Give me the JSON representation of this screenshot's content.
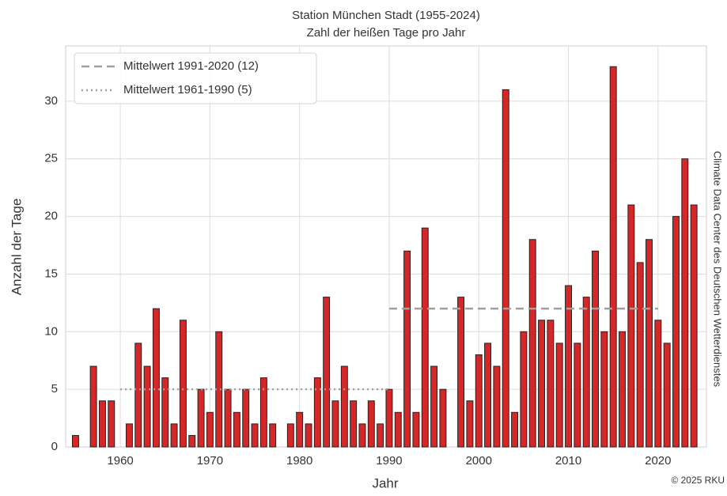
{
  "chart_data": {
    "type": "bar",
    "title": "Station München Stadt (1955-2024)",
    "subtitle": "Zahl der heißen Tage pro Jahr",
    "x_label": "Jahr",
    "y_label": "Anzahl der Tage",
    "source": "Climate Data Center des Deutschen Wetterdienstes",
    "credit": "© 2025 RKU",
    "x": [
      1955,
      1956,
      1957,
      1958,
      1959,
      1960,
      1961,
      1962,
      1963,
      1964,
      1965,
      1966,
      1967,
      1968,
      1969,
      1970,
      1971,
      1972,
      1973,
      1974,
      1975,
      1976,
      1977,
      1978,
      1979,
      1980,
      1981,
      1982,
      1983,
      1984,
      1985,
      1986,
      1987,
      1988,
      1989,
      1990,
      1991,
      1992,
      1993,
      1994,
      1995,
      1996,
      1997,
      1998,
      1999,
      2000,
      2001,
      2002,
      2003,
      2004,
      2005,
      2006,
      2007,
      2008,
      2009,
      2010,
      2011,
      2012,
      2013,
      2014,
      2015,
      2016,
      2017,
      2018,
      2019,
      2020,
      2021,
      2022,
      2023,
      2024
    ],
    "values": [
      1,
      0,
      7,
      4,
      4,
      0,
      2,
      9,
      7,
      12,
      6,
      2,
      11,
      1,
      5,
      3,
      10,
      5,
      3,
      5,
      2,
      6,
      2,
      0,
      2,
      3,
      2,
      6,
      13,
      4,
      7,
      4,
      2,
      4,
      2,
      5,
      3,
      17,
      3,
      19,
      7,
      5,
      0,
      13,
      4,
      8,
      9,
      7,
      31,
      3,
      10,
      18,
      11,
      11,
      9,
      14,
      9,
      13,
      17,
      10,
      33,
      10,
      21,
      16,
      18,
      11,
      9,
      20,
      25,
      21
    ],
    "color": "#d62728",
    "mean_lines": [
      {
        "name": "Mittelwert 1991-2020 (12)",
        "value": 12,
        "x": [
          1990,
          2020
        ],
        "style": "dashed",
        "color": "#a0a0a0"
      },
      {
        "name": "Mittelwert 1961-1990 (5)",
        "value": 5,
        "x": [
          1960,
          1990
        ],
        "style": "dotted",
        "color": "#a0a0a0"
      }
    ],
    "xlim": [
      1953.9,
      2025.4
    ],
    "xticks": [
      1960,
      1970,
      1980,
      1990,
      2000,
      2010,
      2020
    ],
    "ylim": [
      0,
      34.8
    ],
    "yticks": [
      0,
      5,
      10,
      15,
      20,
      25,
      30
    ],
    "grid": true,
    "legend": "upper left"
  }
}
